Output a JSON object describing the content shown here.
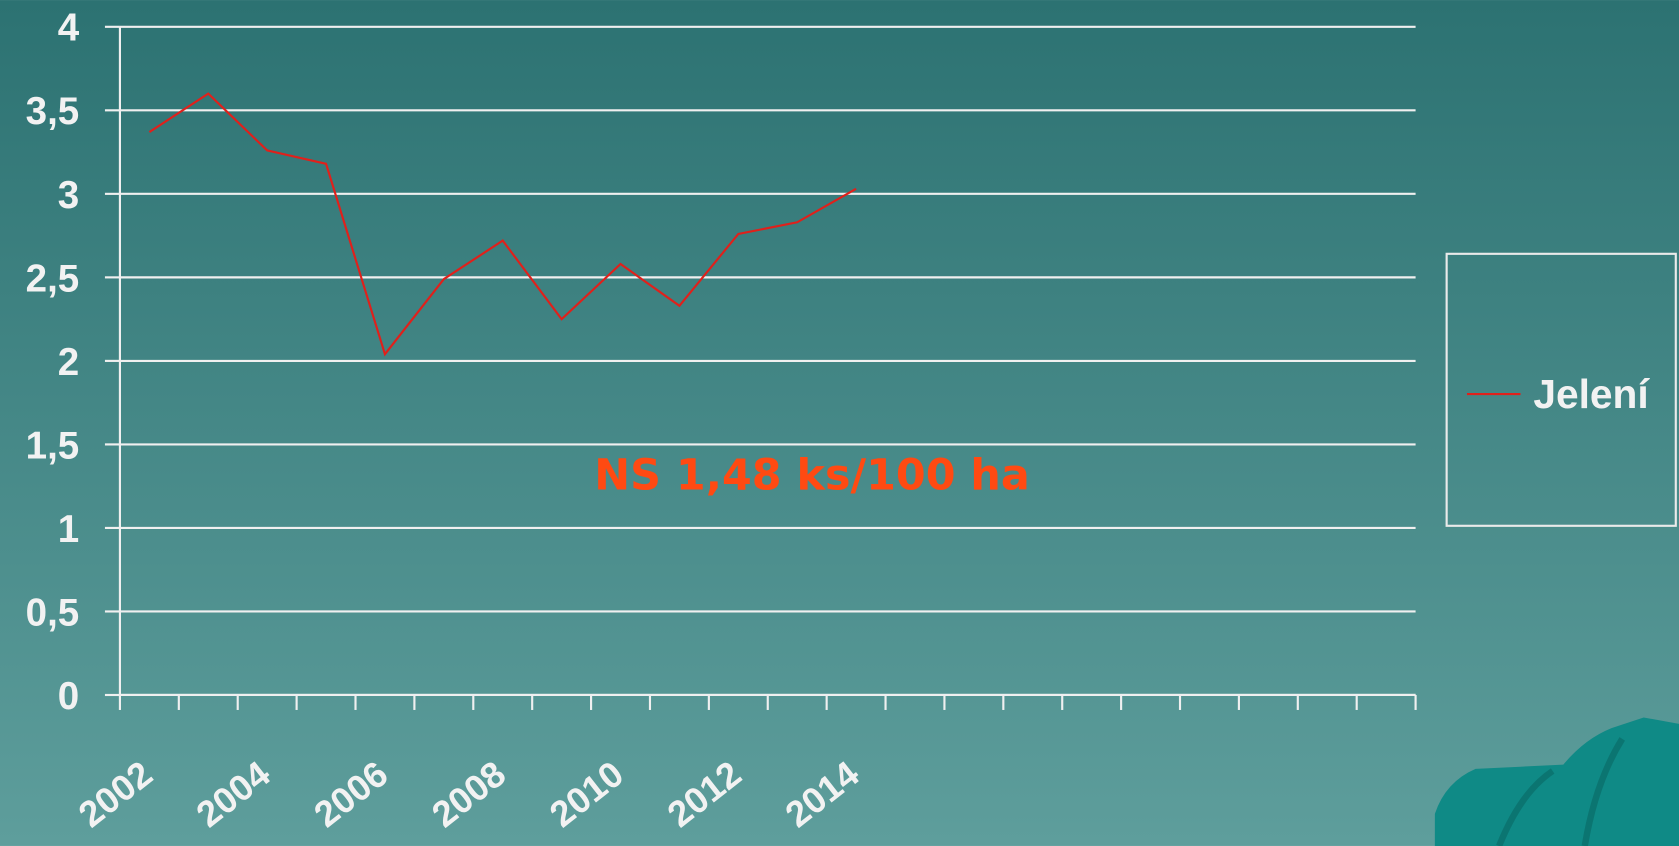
{
  "chart_data": {
    "type": "line",
    "categories": [
      "2002",
      null,
      "2004",
      null,
      "2006",
      null,
      "2008",
      null,
      "2010",
      null,
      "2012",
      null,
      "2014",
      null,
      null,
      null,
      null,
      null,
      null,
      null,
      null,
      null
    ],
    "series": [
      {
        "name": "Jelení",
        "color": "#e0201b",
        "values": [
          3.37,
          3.6,
          3.26,
          3.18,
          2.04,
          2.49,
          2.72,
          2.25,
          2.58,
          2.33,
          2.76,
          2.83,
          3.03,
          null,
          null,
          null,
          null,
          null,
          null,
          null,
          null,
          null
        ]
      }
    ],
    "ylim": [
      0,
      4
    ],
    "yticks": [
      0,
      {
        "value": 0.5,
        "label": "0,5"
      },
      1,
      {
        "value": 1.5,
        "label": "1,5"
      },
      2,
      {
        "value": 2.5,
        "label": "2,5"
      },
      3,
      {
        "value": 3.5,
        "label": "3,5"
      },
      4
    ],
    "grid": true,
    "legend": "right",
    "annotation": "NS 1,48 ks/100 ha",
    "annotation_color": "#ff4a12"
  }
}
